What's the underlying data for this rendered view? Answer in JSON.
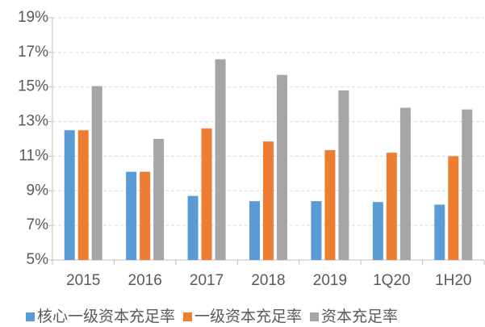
{
  "chart_data": {
    "type": "bar",
    "categories": [
      "2015",
      "2016",
      "2017",
      "2018",
      "2019",
      "1Q20",
      "1H20"
    ],
    "series": [
      {
        "name": "核心一级资本充足率",
        "color": "#5b9bd5",
        "values": [
          12.5,
          10.1,
          8.7,
          8.4,
          8.4,
          8.35,
          8.2
        ]
      },
      {
        "name": "一级资本充足率",
        "color": "#ed7d31",
        "values": [
          12.5,
          10.1,
          12.6,
          11.85,
          11.35,
          11.2,
          11.0
        ]
      },
      {
        "name": "资本充足率",
        "color": "#a5a5a5",
        "values": [
          15.05,
          12.0,
          16.6,
          15.7,
          14.8,
          13.8,
          13.7
        ]
      }
    ],
    "ylim": [
      5,
      19
    ],
    "yticks": [
      {
        "value": 5,
        "label": "5%"
      },
      {
        "value": 7,
        "label": "7%"
      },
      {
        "value": 9,
        "label": "9%"
      },
      {
        "value": 11,
        "label": "11%"
      },
      {
        "value": 13,
        "label": "13%"
      },
      {
        "value": 15,
        "label": "15%"
      },
      {
        "value": 17,
        "label": "17%"
      },
      {
        "value": 19,
        "label": "19%"
      }
    ],
    "grid": true,
    "legend": "bottom"
  }
}
